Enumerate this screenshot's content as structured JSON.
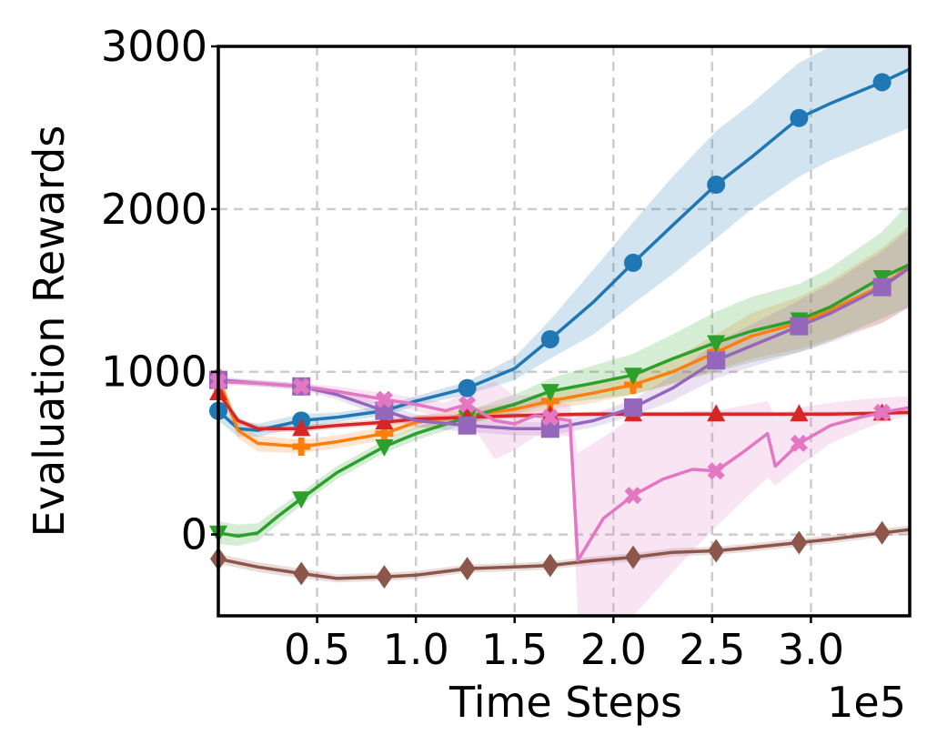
{
  "chart_data": {
    "type": "line",
    "title": "",
    "xlabel": "Time Steps",
    "ylabel": "Evaluation Rewards",
    "x_offset_text": "1e5",
    "xlim": [
      0,
      350000
    ],
    "ylim": [
      -500,
      3000
    ],
    "x_ticks": [
      50000,
      100000,
      150000,
      200000,
      250000,
      300000
    ],
    "x_tick_labels": [
      "0.5",
      "1.0",
      "1.5",
      "2.0",
      "2.5",
      "3.0"
    ],
    "y_ticks": [
      0,
      1000,
      2000,
      3000
    ],
    "y_tick_labels": [
      "0",
      "1000",
      "2000",
      "3000"
    ],
    "grid": true,
    "legend": "none",
    "marker_x": [
      0,
      42000,
      84000,
      126000,
      168000,
      210000,
      252000,
      294000,
      336000
    ],
    "series": [
      {
        "color": "#1f77b4",
        "marker": "circle",
        "x": [
          0,
          10000,
          20000,
          42000,
          60000,
          84000,
          100000,
          126000,
          150000,
          168000,
          190000,
          210000,
          230000,
          252000,
          270000,
          294000,
          310000,
          336000,
          350000
        ],
        "y": [
          760,
          650,
          640,
          700,
          720,
          760,
          820,
          900,
          1020,
          1200,
          1430,
          1670,
          1900,
          2150,
          2320,
          2560,
          2650,
          2780,
          2860
        ],
        "lower": [
          700,
          600,
          600,
          660,
          690,
          730,
          790,
          860,
          950,
          1080,
          1230,
          1420,
          1600,
          1820,
          2000,
          2200,
          2300,
          2430,
          2500
        ],
        "upper": [
          820,
          700,
          680,
          740,
          750,
          790,
          850,
          940,
          1090,
          1320,
          1630,
          1920,
          2200,
          2480,
          2650,
          2900,
          3000,
          3000,
          3000
        ]
      },
      {
        "color": "#ff7f0e",
        "marker": "plus",
        "x": [
          0,
          10000,
          20000,
          42000,
          60000,
          84000,
          100000,
          126000,
          150000,
          168000,
          190000,
          210000,
          230000,
          252000,
          270000,
          294000,
          310000,
          336000,
          350000
        ],
        "y": [
          960,
          640,
          560,
          540,
          570,
          620,
          690,
          730,
          770,
          820,
          870,
          920,
          1000,
          1120,
          1220,
          1300,
          1380,
          1530,
          1650
        ],
        "lower": [
          900,
          590,
          510,
          500,
          530,
          580,
          650,
          690,
          730,
          770,
          810,
          860,
          920,
          1010,
          1080,
          1140,
          1200,
          1300,
          1400
        ],
        "upper": [
          1020,
          690,
          610,
          580,
          610,
          660,
          730,
          770,
          810,
          870,
          930,
          980,
          1080,
          1230,
          1360,
          1460,
          1560,
          1760,
          1900
        ]
      },
      {
        "color": "#2ca02c",
        "marker": "triangle-down",
        "x": [
          0,
          10000,
          20000,
          30000,
          42000,
          60000,
          84000,
          100000,
          126000,
          150000,
          168000,
          190000,
          210000,
          230000,
          252000,
          270000,
          294000,
          310000,
          336000,
          350000
        ],
        "y": [
          10,
          -10,
          10,
          110,
          220,
          380,
          540,
          620,
          720,
          800,
          880,
          930,
          980,
          1080,
          1180,
          1250,
          1320,
          1400,
          1580,
          1660
        ],
        "lower": [
          -60,
          -70,
          -40,
          60,
          180,
          340,
          500,
          580,
          680,
          740,
          800,
          830,
          860,
          930,
          1000,
          1060,
          1120,
          1190,
          1330,
          1400
        ],
        "upper": [
          80,
          60,
          70,
          160,
          260,
          420,
          580,
          660,
          760,
          860,
          960,
          1040,
          1110,
          1230,
          1370,
          1460,
          1540,
          1640,
          1860,
          2040
        ]
      },
      {
        "color": "#d62728",
        "marker": "triangle-up",
        "x": [
          0,
          10000,
          20000,
          42000,
          60000,
          84000,
          100000,
          126000,
          150000,
          168000,
          190000,
          210000,
          230000,
          252000,
          270000,
          294000,
          310000,
          336000,
          350000
        ],
        "y": [
          870,
          700,
          650,
          650,
          670,
          690,
          710,
          720,
          730,
          735,
          740,
          740,
          740,
          740,
          740,
          740,
          740,
          745,
          750
        ],
        "lower": [
          840,
          680,
          630,
          630,
          650,
          670,
          690,
          700,
          715,
          720,
          725,
          725,
          725,
          725,
          725,
          725,
          725,
          730,
          735
        ],
        "upper": [
          900,
          720,
          670,
          670,
          690,
          710,
          730,
          740,
          745,
          750,
          755,
          755,
          755,
          755,
          755,
          755,
          755,
          760,
          765
        ]
      },
      {
        "color": "#9467bd",
        "marker": "square",
        "x": [
          0,
          20000,
          42000,
          60000,
          84000,
          100000,
          126000,
          150000,
          168000,
          190000,
          210000,
          230000,
          252000,
          270000,
          294000,
          310000,
          336000,
          350000
        ],
        "y": [
          950,
          930,
          910,
          860,
          760,
          700,
          670,
          650,
          650,
          700,
          780,
          900,
          1070,
          1160,
          1280,
          1360,
          1520,
          1640
        ],
        "lower": [
          930,
          910,
          890,
          830,
          720,
          660,
          630,
          610,
          610,
          660,
          730,
          820,
          960,
          1030,
          1120,
          1180,
          1300,
          1400
        ],
        "upper": [
          970,
          950,
          930,
          890,
          800,
          740,
          710,
          690,
          690,
          740,
          830,
          980,
          1180,
          1290,
          1440,
          1540,
          1740,
          1880
        ]
      },
      {
        "color": "#8c564b",
        "marker": "diamond",
        "x": [
          0,
          20000,
          42000,
          60000,
          84000,
          100000,
          126000,
          150000,
          168000,
          190000,
          210000,
          230000,
          252000,
          270000,
          294000,
          310000,
          336000,
          350000
        ],
        "y": [
          -150,
          -200,
          -240,
          -270,
          -260,
          -250,
          -210,
          -200,
          -190,
          -160,
          -140,
          -110,
          -100,
          -80,
          -50,
          -30,
          10,
          30
        ],
        "lower": [
          -180,
          -230,
          -270,
          -295,
          -285,
          -275,
          -235,
          -225,
          -215,
          -185,
          -165,
          -135,
          -125,
          -105,
          -75,
          -55,
          -15,
          5
        ],
        "upper": [
          -120,
          -170,
          -210,
          -245,
          -235,
          -225,
          -185,
          -175,
          -165,
          -135,
          -115,
          -85,
          -75,
          -55,
          -25,
          -5,
          35,
          55
        ]
      },
      {
        "color": "#e377c2",
        "marker": "x",
        "x": [
          0,
          20000,
          42000,
          60000,
          84000,
          100000,
          115000,
          126000,
          140000,
          150000,
          160000,
          168000,
          178000,
          182000,
          195000,
          210000,
          225000,
          240000,
          252000,
          265000,
          278000,
          282000,
          294000,
          310000,
          325000,
          336000,
          350000
        ],
        "y": [
          940,
          930,
          910,
          880,
          830,
          800,
          760,
          800,
          700,
          680,
          730,
          720,
          700,
          -160,
          100,
          240,
          340,
          400,
          390,
          500,
          620,
          420,
          560,
          670,
          720,
          750,
          780
        ],
        "lower": [
          920,
          910,
          890,
          850,
          790,
          760,
          710,
          720,
          460,
          520,
          600,
          620,
          600,
          -500,
          -500,
          -500,
          -300,
          -100,
          50,
          200,
          350,
          300,
          420,
          560,
          640,
          690,
          730
        ],
        "upper": [
          960,
          950,
          930,
          910,
          870,
          840,
          810,
          880,
          940,
          850,
          860,
          830,
          800,
          500,
          600,
          720,
          740,
          760,
          760,
          790,
          820,
          720,
          780,
          810,
          830,
          840,
          850
        ]
      }
    ]
  }
}
